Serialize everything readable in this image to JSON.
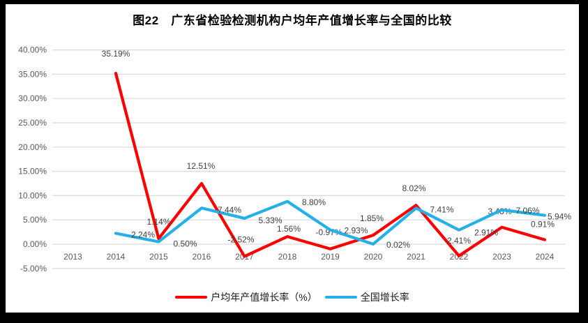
{
  "chart_data": {
    "type": "line",
    "title": "图22　广东省检验检测机构户均年产值增长率与全国的比较",
    "categories": [
      "2013",
      "2014",
      "2015",
      "2016",
      "2017",
      "2018",
      "2019",
      "2020",
      "2021",
      "2022",
      "2023",
      "2024"
    ],
    "series": [
      {
        "name": "户均年产值增长率（%）",
        "color": "#FF0000",
        "start_index": 1,
        "values": [
          35.19,
          1.14,
          12.51,
          -2.52,
          1.56,
          -0.97,
          1.85,
          8.02,
          -2.41,
          3.48,
          0.91
        ],
        "labels": [
          "35.19%",
          "1.14%",
          "12.51%",
          "-2.52%",
          "1.56%",
          "-0.97%",
          "1.85%",
          "8.02%",
          "-2.41%",
          "3.48%",
          "0.91%"
        ]
      },
      {
        "name": "全国增长率",
        "color": "#25B0E8",
        "start_index": 1,
        "values": [
          2.24,
          0.5,
          7.44,
          5.33,
          8.8,
          2.93,
          0.02,
          7.41,
          2.91,
          7.06,
          5.94
        ],
        "labels": [
          "2.24%",
          "0.50%",
          "7.44%",
          "5.33%",
          "8.80%",
          "2.93%",
          "0.02%",
          "7.41%",
          "2.91%",
          "7.06%",
          "5.94%"
        ]
      }
    ],
    "ylim": [
      -5,
      40
    ],
    "y_tick_values": [
      40,
      35,
      30,
      25,
      20,
      15,
      10,
      5,
      0,
      -5
    ],
    "y_tick_labels": [
      "40.00%",
      "35.00%",
      "30.00%",
      "25.00%",
      "20.00%",
      "15.00%",
      "10.00%",
      "5.00%",
      "0.00%",
      "-5.00%"
    ],
    "grid": true,
    "grid_color": "#D9D9D9",
    "legend_position": "bottom",
    "legend": [
      "户均年产值增长率（%）",
      "全国增长率"
    ]
  }
}
